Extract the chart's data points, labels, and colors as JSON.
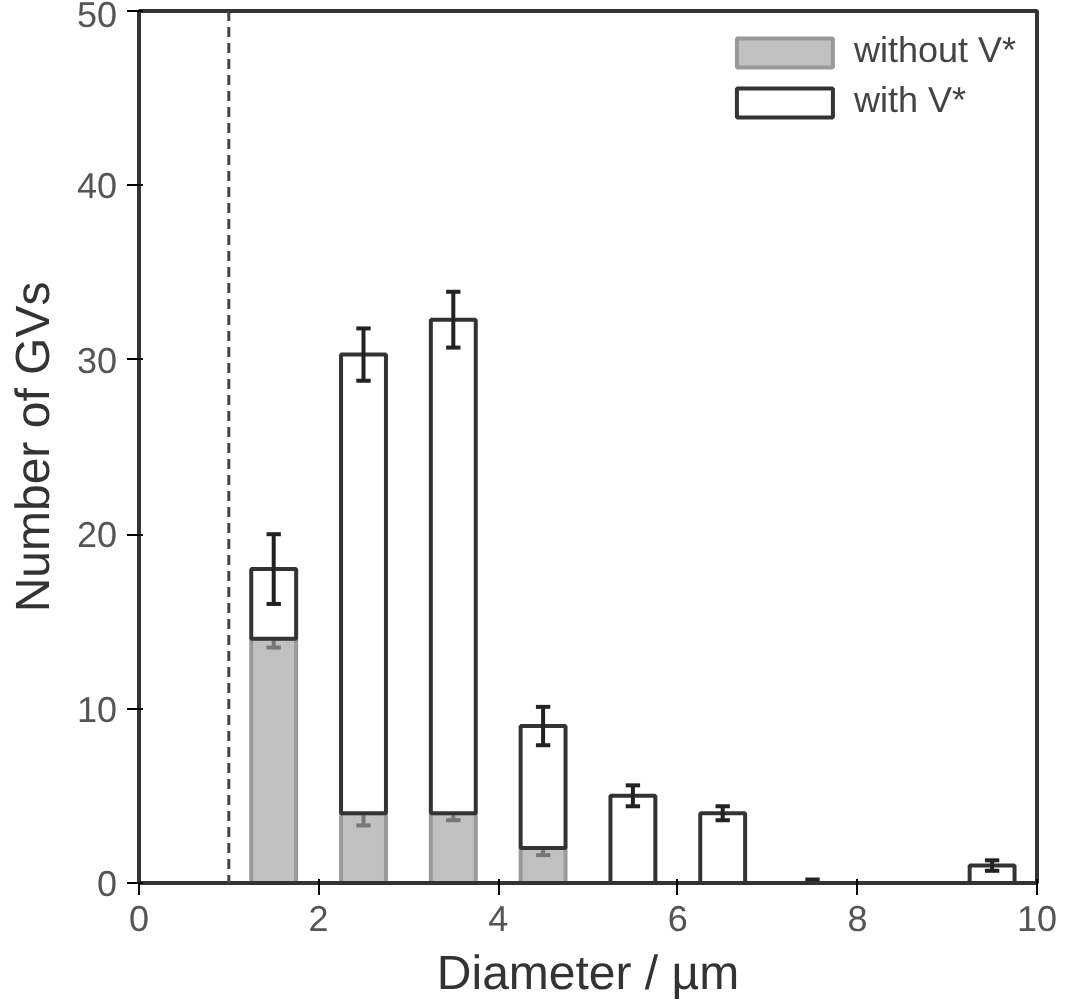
{
  "chart_data": {
    "type": "bar",
    "stacked": true,
    "xlabel": "Diameter / µm",
    "ylabel": "Number of GVs",
    "x": [
      1.5,
      2.5,
      3.5,
      4.5,
      5.5,
      6.5,
      7.5,
      8.5,
      9.5
    ],
    "series": [
      {
        "name": "without V*",
        "color": "#c0c0c0",
        "values": [
          14,
          4,
          4,
          2,
          null,
          null,
          null,
          null,
          null
        ],
        "errors": [
          0.5,
          0.7,
          0.4,
          0.4,
          null,
          null,
          null,
          null,
          null
        ]
      },
      {
        "name": "with V*",
        "color": "#ffffff",
        "values": [
          4,
          26.3,
          28.3,
          7,
          5,
          4,
          0,
          null,
          1
        ],
        "errors": [
          2,
          1.5,
          1.6,
          1.1,
          0.6,
          0.4,
          0.2,
          null,
          0.3
        ]
      }
    ],
    "xlim": [
      0,
      10
    ],
    "xticks": [
      0,
      2,
      4,
      6,
      8,
      10
    ],
    "ylim": [
      0,
      50
    ],
    "yticks": [
      0,
      10,
      20,
      30,
      40,
      50
    ],
    "ref_lines": [
      {
        "axis": "x",
        "value": 1,
        "line_style": "dashed"
      }
    ],
    "grid": false,
    "legend": "top right"
  }
}
